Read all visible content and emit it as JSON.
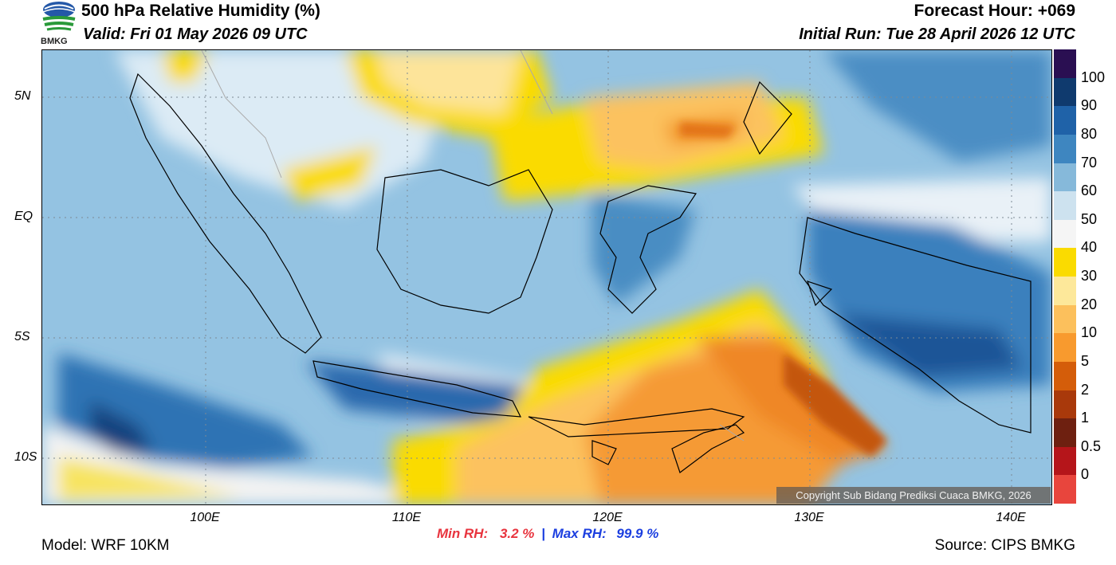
{
  "header": {
    "title": "500 hPa Relative Humidity (%)",
    "valid": "Valid: Fri 01 May 2026 09 UTC",
    "forecast_hour": "Forecast Hour: +069",
    "initial_run": "Initial Run: Tue 28 April 2026 12 UTC",
    "logo_text": "BMKG"
  },
  "axes": {
    "lat_labels": [
      "5N",
      "EQ",
      "5S",
      "10S"
    ],
    "lon_labels": [
      "100E",
      "110E",
      "120E",
      "130E",
      "140E"
    ]
  },
  "colorbar": {
    "labels": [
      "100",
      "90",
      "80",
      "70",
      "60",
      "50",
      "40",
      "30",
      "20",
      "10",
      "5",
      "2",
      "1",
      "0.5",
      "0"
    ],
    "colors": [
      "#2a0f52",
      "#0f3a6e",
      "#1f62a8",
      "#3e86c0",
      "#86b9da",
      "#cde2ef",
      "#f5f5f5",
      "#fadb00",
      "#fde89a",
      "#fcc05c",
      "#f89a2e",
      "#d45d0a",
      "#a9390b",
      "#6e2010",
      "#b5151a",
      "#e8453d"
    ]
  },
  "stats": {
    "min_label": "Min RH:",
    "min_value": "3.2 %",
    "separator": "|",
    "max_label": "Max RH:",
    "max_value": "99.9 %"
  },
  "footer": {
    "model": "Model: WRF 10KM",
    "source": "Source: CIPS BMKG",
    "copyright": "Copyright Sub Bidang Prediksi Cuaca BMKG, 2026"
  }
}
